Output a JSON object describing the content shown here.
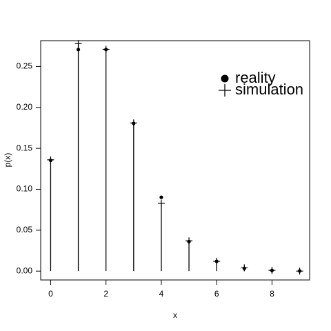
{
  "chart_data": {
    "type": "stem",
    "x_label": "x",
    "y_label": "p(x)",
    "x": [
      0,
      1,
      2,
      3,
      4,
      5,
      6,
      7,
      8,
      9
    ],
    "series": [
      {
        "name": "reality",
        "marker": "dot",
        "color": "#000000",
        "values": [
          0.1353,
          0.2707,
          0.2707,
          0.1804,
          0.0902,
          0.0361,
          0.012,
          0.0034,
          0.0009,
          0.0002
        ]
      },
      {
        "name": "simulation",
        "marker": "plus",
        "stem": true,
        "color": "#000000",
        "values": [
          0.136,
          0.278,
          0.271,
          0.181,
          0.083,
          0.037,
          0.012,
          0.004,
          0.001,
          0.0
        ]
      }
    ],
    "xlim": [
      -0.36,
      9.36
    ],
    "xticks": [
      0,
      2,
      4,
      6,
      8
    ],
    "ylim": [
      -0.0108,
      0.2815
    ],
    "yticks": [
      {
        "value": 0,
        "label": "0.00"
      },
      {
        "value": 0.05,
        "label": "0.05"
      },
      {
        "value": 0.1,
        "label": "0.10"
      },
      {
        "value": 0.15,
        "label": "0.15"
      },
      {
        "value": 0.2,
        "label": "0.20"
      },
      {
        "value": 0.25,
        "label": "0.25"
      }
    ],
    "legend": "top-right"
  }
}
